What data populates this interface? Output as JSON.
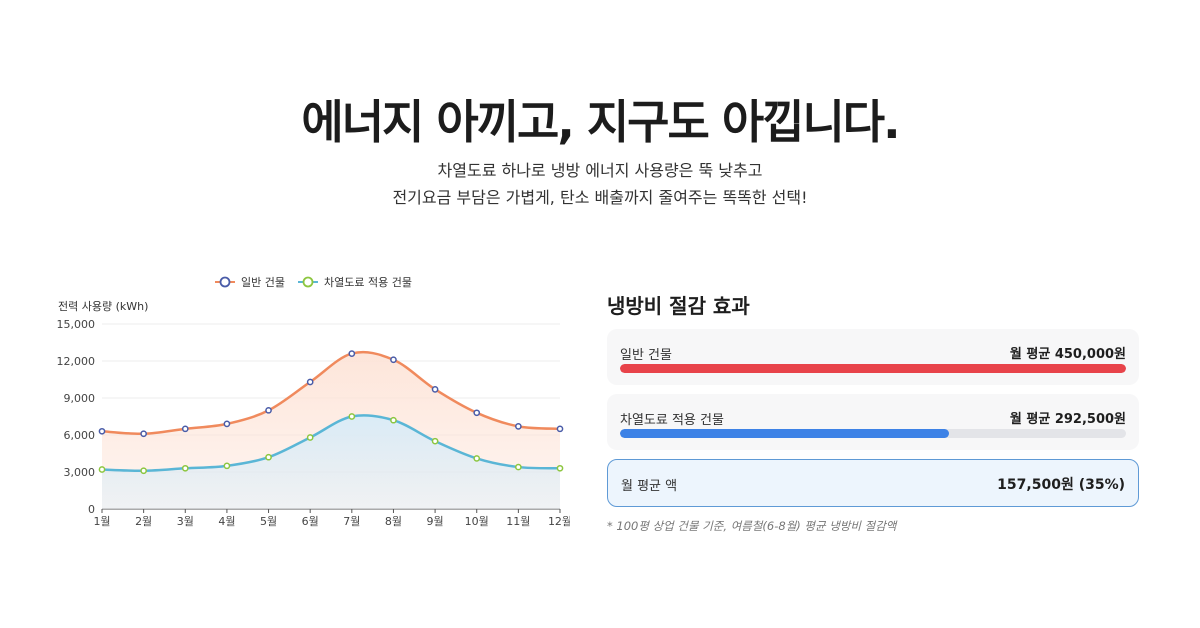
{
  "header": {
    "headline": "에너지 아끼고, 지구도 아낍니다.",
    "subline_1": "차열도료 하나로 냉방 에너지 사용량은 뚝 낮추고",
    "subline_2": "전기요금 부담은 가볍게, 탄소 배출까지 줄여주는 똑똑한 선택!"
  },
  "chart_data": {
    "type": "area",
    "title": "",
    "ylabel": "전력 사용량 (kWh)",
    "xlabel": "",
    "categories": [
      "1월",
      "2월",
      "3월",
      "4월",
      "5월",
      "6월",
      "7월",
      "8월",
      "9월",
      "10월",
      "11월",
      "12월"
    ],
    "ylim": [
      0,
      15000
    ],
    "yticks": [
      0,
      3000,
      6000,
      9000,
      12000,
      15000
    ],
    "ytick_labels": [
      "0",
      "3,000",
      "6,000",
      "9,000",
      "12,000",
      "15,000"
    ],
    "grid": true,
    "legend_position": "top",
    "series": [
      {
        "name": "일반 건물",
        "color": "#f08a5d",
        "marker_color": "#4a5ca8",
        "fill": "#fde4d8",
        "values": [
          6300,
          6100,
          6500,
          6900,
          8000,
          10300,
          12600,
          12100,
          9700,
          7800,
          6700,
          6500
        ]
      },
      {
        "name": "차열도료 적용 건물",
        "color": "#5ab6d6",
        "marker_color": "#8cc63f",
        "fill": "#d8ecf8",
        "values": [
          3200,
          3100,
          3300,
          3500,
          4200,
          5800,
          7500,
          7200,
          5500,
          4100,
          3400,
          3300
        ]
      }
    ]
  },
  "panel": {
    "title": "냉방비 절감 효과",
    "rows": [
      {
        "label": "일반 건물",
        "value": "월 평균 450,000원",
        "fill_fraction": 1.0
      },
      {
        "label": "차열도료 적용 건물",
        "value": "월 평균 292,500원",
        "fill_fraction": 0.65
      }
    ],
    "saving": {
      "label": "월 평균 액",
      "value": "157,500원 (35%)"
    },
    "footnote": "* 100평 상업 건물 기준, 여름철(6-8월) 평균 냉방비 절감액"
  }
}
